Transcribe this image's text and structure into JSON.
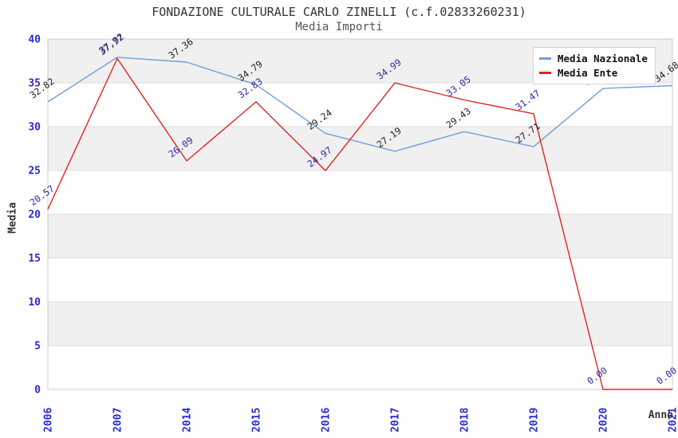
{
  "title": "FONDAZIONE CULTURALE CARLO ZINELLI (c.f.02833260231)",
  "subtitle": "Media Importi",
  "chart_data": {
    "type": "line",
    "x": [
      "2006",
      "2007",
      "2014",
      "2015",
      "2016",
      "2017",
      "2018",
      "2019",
      "2020",
      "2021"
    ],
    "xlabel": "Anno",
    "ylabel": "Media",
    "ylim": [
      0,
      40
    ],
    "yticks": [
      0,
      5,
      10,
      15,
      20,
      25,
      30,
      35,
      40
    ],
    "grid": "alternating-horizontal-bands",
    "legend_position": "top-right",
    "point_labels_rotation_deg": -36,
    "series": [
      {
        "name": "Media Nazionale",
        "color": "#6f9fd8",
        "label_color": "#222222",
        "values": [
          32.82,
          37.92,
          37.36,
          34.79,
          29.24,
          27.19,
          29.43,
          27.71,
          34.35,
          34.68
        ]
      },
      {
        "name": "Media Ente",
        "color": "#e02424",
        "label_color": "#2a2a9e",
        "values": [
          20.57,
          37.77,
          26.09,
          32.83,
          24.97,
          34.99,
          33.05,
          31.47,
          0.0,
          0.0
        ]
      }
    ],
    "style": {
      "band_color": "#f0f0f0",
      "gridline_color": "#dedede",
      "plot_border_color": "#cccccc",
      "tick_label_color": "#2b2bd0",
      "background": "#ffffff"
    }
  }
}
